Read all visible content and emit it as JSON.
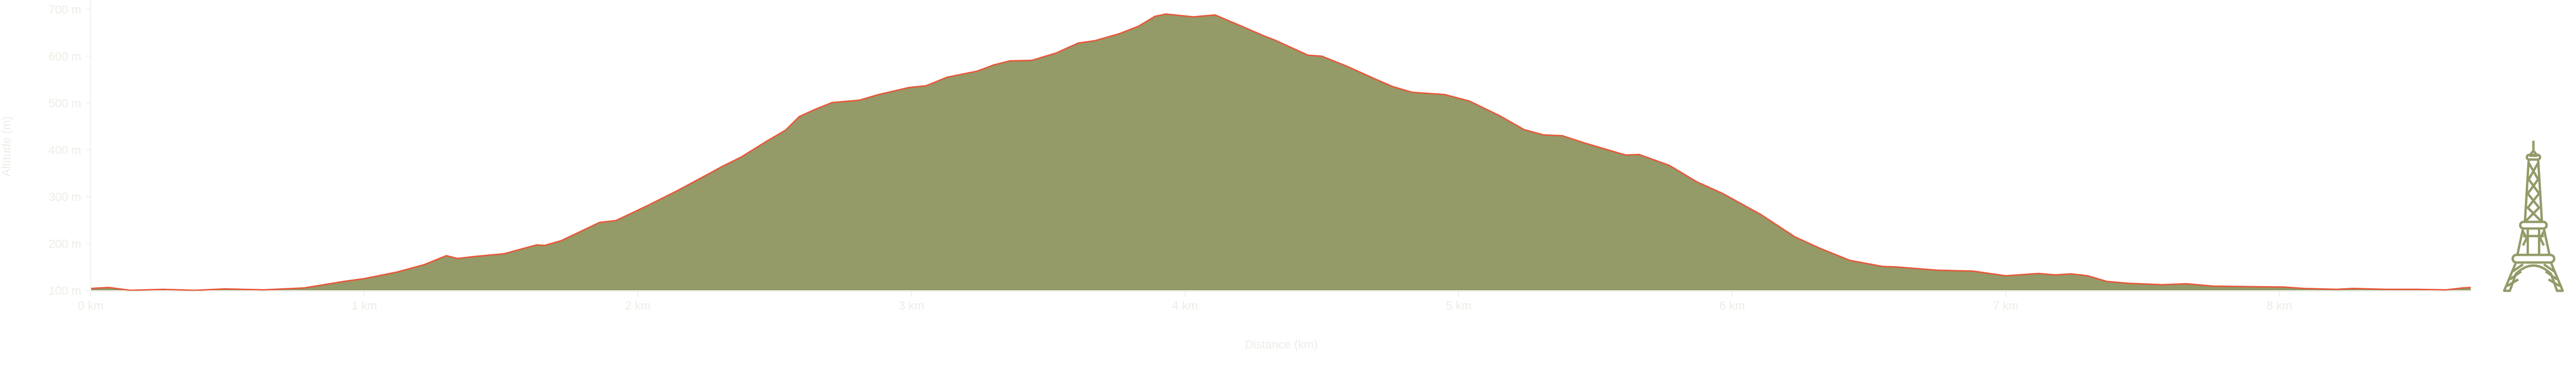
{
  "chart_data": {
    "type": "area",
    "title": "",
    "xlabel": "Distance (km)",
    "ylabel": "Altitude (m)",
    "xlim": [
      0,
      8.7
    ],
    "ylim": [
      100,
      700
    ],
    "grid": false,
    "x_ticks": [
      {
        "value": 0,
        "label": "0 km"
      },
      {
        "value": 1,
        "label": "1 km"
      },
      {
        "value": 2,
        "label": "2 km"
      },
      {
        "value": 3,
        "label": "3 km"
      },
      {
        "value": 4,
        "label": "4 km"
      },
      {
        "value": 5,
        "label": "5 km"
      },
      {
        "value": 6,
        "label": "6 km"
      },
      {
        "value": 7,
        "label": "7 km"
      },
      {
        "value": 8,
        "label": "8 km"
      }
    ],
    "y_ticks": [
      {
        "value": 100,
        "label": "100 m"
      },
      {
        "value": 200,
        "label": "200 m"
      },
      {
        "value": 300,
        "label": "300 m"
      },
      {
        "value": 400,
        "label": "400 m"
      },
      {
        "value": 500,
        "label": "500 m"
      },
      {
        "value": 600,
        "label": "600 m"
      },
      {
        "value": 700,
        "label": "700 m"
      }
    ],
    "colors": {
      "fill": "#949a68",
      "line": "#e8573a",
      "axis": "#eef1ea",
      "icon": "#949a68"
    },
    "decoration_icon": "eiffel-tower-icon",
    "series": [
      {
        "x": [
          0,
          0.066,
          0.145,
          0.264,
          0.38,
          0.49,
          0.63,
          0.78,
          0.925,
          1.0,
          1.12,
          1.22,
          1.3,
          1.34,
          1.4,
          1.51,
          1.63,
          1.66,
          1.72,
          1.86,
          1.92,
          2.036,
          2.145,
          2.25,
          2.31,
          2.376,
          2.47,
          2.54,
          2.59,
          2.646,
          2.71,
          2.81,
          2.88,
          2.99,
          3.055,
          3.13,
          3.24,
          3.3,
          3.36,
          3.44,
          3.53,
          3.61,
          3.67,
          3.76,
          3.83,
          3.89,
          3.93,
          4.03,
          4.11,
          4.195,
          4.29,
          4.33,
          4.45,
          4.5,
          4.59,
          4.7,
          4.76,
          4.83,
          4.95,
          5.04,
          5.15,
          5.24,
          5.31,
          5.38,
          5.47,
          5.61,
          5.66,
          5.77,
          5.87,
          5.965,
          6.105,
          6.23,
          6.32,
          6.43,
          6.55,
          6.6,
          6.75,
          6.88,
          7.0,
          7.12,
          7.18,
          7.24,
          7.3,
          7.37,
          7.45,
          7.57,
          7.66,
          7.76,
          7.88,
          8.015,
          8.09,
          8.21,
          8.27,
          8.39,
          8.51,
          8.61,
          8.67,
          8.7
        ],
        "y": [
          104,
          106,
          100,
          102,
          100,
          103,
          101,
          105,
          119,
          125,
          139,
          155,
          174,
          168,
          172,
          178,
          197,
          196,
          206,
          245,
          249,
          281,
          313,
          346,
          365,
          384,
          418,
          442,
          471,
          486,
          501,
          506,
          518,
          533,
          537,
          555,
          568,
          581,
          590,
          591,
          607,
          628,
          633,
          648,
          664,
          685,
          690,
          684,
          688,
          667,
          643,
          634,
          602,
          600,
          579,
          550,
          535,
          523,
          518,
          504,
          473,
          443,
          432,
          430,
          413,
          389,
          390,
          367,
          332,
          307,
          262,
          214,
          190,
          164,
          151,
          150,
          143,
          141,
          131,
          136,
          133,
          135,
          131,
          119,
          115,
          112,
          114,
          109,
          108,
          107,
          104,
          102,
          104,
          102,
          102,
          101,
          105,
          106
        ]
      }
    ]
  }
}
